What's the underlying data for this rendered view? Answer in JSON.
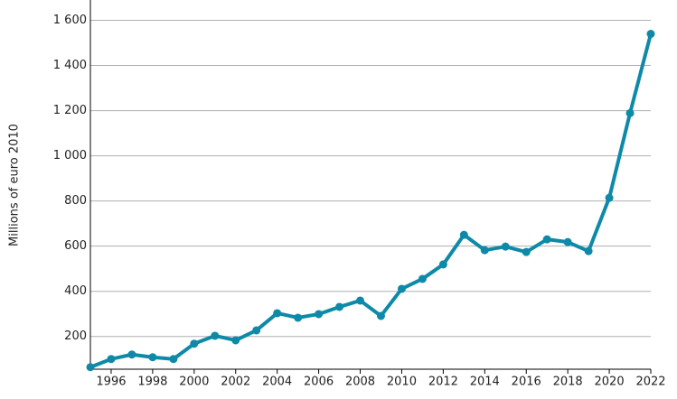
{
  "chart_data": {
    "type": "line",
    "y_label": "Millions of euro 2010",
    "x": [
      1995,
      1996,
      1997,
      1998,
      1999,
      2000,
      2001,
      2002,
      2003,
      2004,
      2005,
      2006,
      2007,
      2008,
      2009,
      2010,
      2011,
      2012,
      2013,
      2014,
      2015,
      2016,
      2017,
      2018,
      2019,
      2020,
      2021,
      2022
    ],
    "series": [
      {
        "color": "#0e8aa8",
        "values": [
          64,
          100,
          120,
          108,
          100,
          168,
          203,
          183,
          227,
          303,
          283,
          299,
          331,
          359,
          291,
          411,
          455,
          519,
          650,
          582,
          598,
          574,
          630,
          618,
          578,
          814,
          1189,
          1540
        ]
      }
    ],
    "xlim": [
      1995,
      2022
    ],
    "xticks": [
      1996,
      1998,
      2000,
      2002,
      2004,
      2006,
      2008,
      2010,
      2012,
      2014,
      2016,
      2018,
      2020,
      2022
    ],
    "ylim": [
      55,
      1690
    ],
    "yticks": [
      200,
      400,
      600,
      800,
      {
        "value": 1000,
        "label": "1 000"
      },
      {
        "value": 1200,
        "label": "1 200"
      },
      {
        "value": 1400,
        "label": "1 400"
      },
      {
        "value": 1600,
        "label": "1 600"
      }
    ],
    "grid": true
  }
}
